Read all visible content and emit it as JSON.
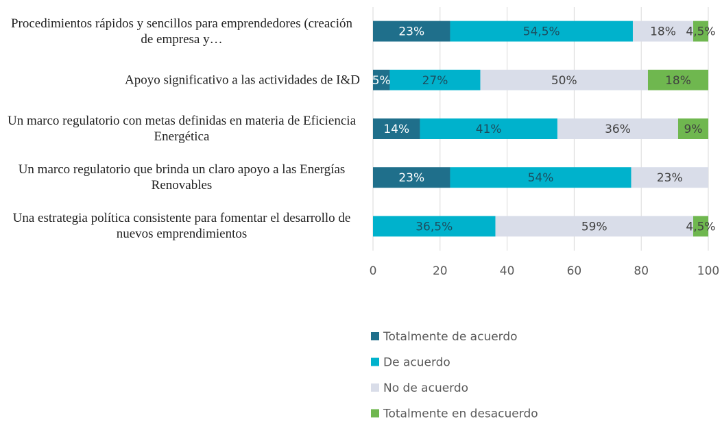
{
  "chart_data": {
    "type": "stacked-bar-horizontal",
    "categories": [
      "Procedimientos rápidos y sencillos para emprendedores (creación de empresa y…",
      "Apoyo significativo a las actividades de I&D",
      "Un marco regulatorio con metas definidas en materia de Eficiencia Energética",
      "Un marco regulatorio que brinda un claro apoyo a las Energías Renovables",
      "Una estrategia política consistente para fomentar el desarrollo de nuevos emprendimientos"
    ],
    "series": [
      {
        "name": "Totalmente de acuerdo",
        "color": "#1f6f8b",
        "label_color": "#ffffff",
        "values": [
          23,
          5,
          14,
          23,
          null
        ],
        "value_labels": [
          "23%",
          "5%",
          "14%",
          "23%",
          null
        ]
      },
      {
        "name": "De acuerdo",
        "color": "#00b2cc",
        "label_color": "#1d4d5e",
        "values": [
          54.5,
          27,
          41,
          54,
          36.5
        ],
        "value_labels": [
          "54,5%",
          "27%",
          "41%",
          "54%",
          "36,5%"
        ]
      },
      {
        "name": "No de acuerdo",
        "color": "#d9dde9",
        "label_color": "#404040",
        "values": [
          18,
          50,
          36,
          23,
          59
        ],
        "value_labels": [
          "18%",
          "50%",
          "36%",
          "23%",
          "59%"
        ]
      },
      {
        "name": "Totalmente en desacuerdo",
        "color": "#6fb74f",
        "label_color": "#404040",
        "values": [
          4.5,
          18,
          9,
          null,
          4.5
        ],
        "value_labels": [
          "4,5%",
          "18%",
          "9%",
          null,
          "4,5%"
        ]
      }
    ],
    "xlim": [
      0,
      100
    ],
    "xticks": [
      0,
      20,
      40,
      60,
      80,
      100
    ],
    "grid": true
  }
}
